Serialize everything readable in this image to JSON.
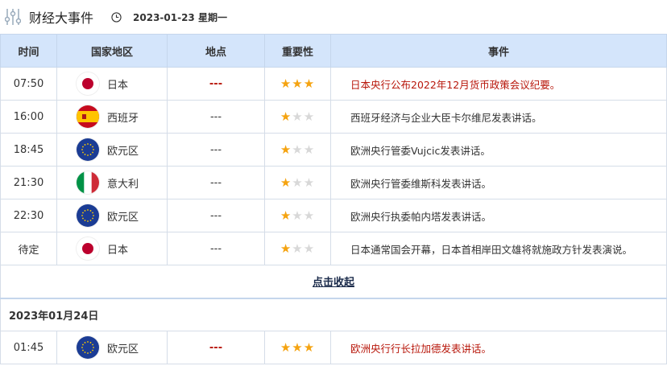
{
  "header": {
    "title": "财经大事件",
    "date": "2023-01-23 星期一",
    "icon": "sliders-icon",
    "clock_icon": "clock-icon"
  },
  "columns": [
    "时间",
    "国家地区",
    "地点",
    "重要性",
    "事件"
  ],
  "colors": {
    "accent_red": "#b8170b",
    "star": "#f5a310",
    "header_bg": "#d4e5fb"
  },
  "rows": [
    {
      "time": "07:50",
      "country": "日本",
      "flag": "jp",
      "location": "---",
      "importance": 3,
      "event": "日本央行公布2022年12月货币政策会议纪要。"
    },
    {
      "time": "16:00",
      "country": "西班牙",
      "flag": "es",
      "location": "---",
      "importance": 1,
      "event": "西班牙经济与企业大臣卡尔维尼发表讲话。"
    },
    {
      "time": "18:45",
      "country": "欧元区",
      "flag": "eu",
      "location": "---",
      "importance": 1,
      "event": "欧洲央行管委Vujcic发表讲话。"
    },
    {
      "time": "21:30",
      "country": "意大利",
      "flag": "it",
      "location": "---",
      "importance": 1,
      "event": "欧洲央行管委维斯科发表讲话。"
    },
    {
      "time": "22:30",
      "country": "欧元区",
      "flag": "eu",
      "location": "---",
      "importance": 1,
      "event": "欧洲央行执委帕内塔发表讲话。"
    },
    {
      "time": "待定",
      "country": "日本",
      "flag": "jp",
      "location": "---",
      "importance": 1,
      "event": "日本通常国会开幕，日本首相岸田文雄将就施政方针发表演说。"
    }
  ],
  "collapse_label": "点击收起",
  "next_date": "2023年01月24日",
  "next_rows": [
    {
      "time": "01:45",
      "country": "欧元区",
      "flag": "eu",
      "location": "---",
      "importance": 3,
      "event": "欧洲央行行长拉加德发表讲话。"
    }
  ]
}
